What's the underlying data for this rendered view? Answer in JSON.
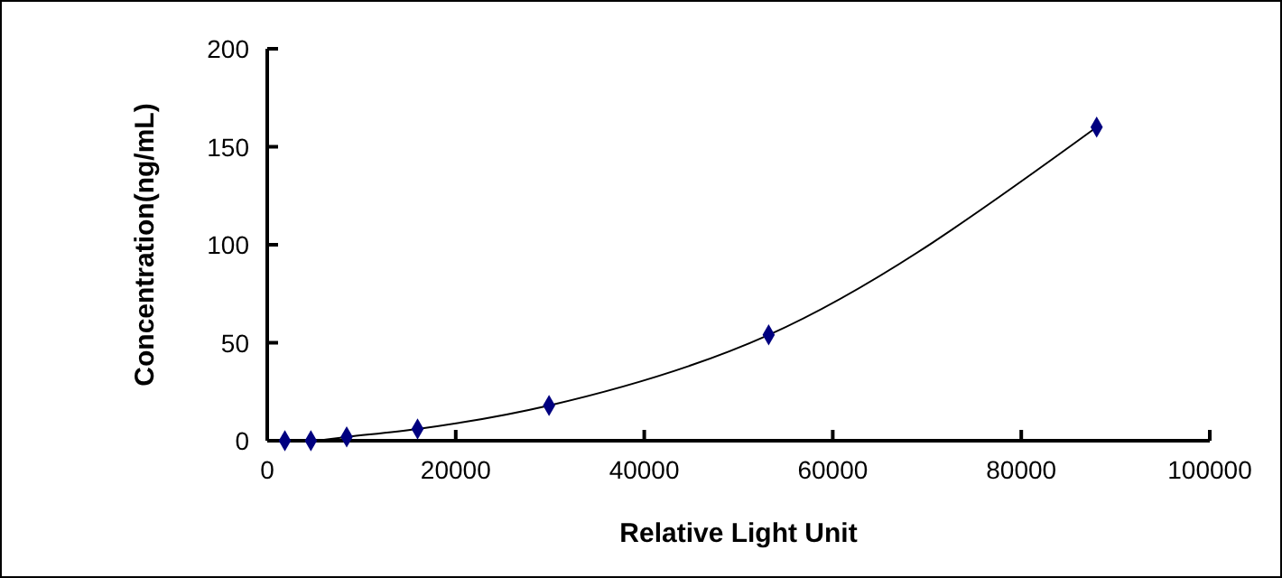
{
  "chart_data": {
    "type": "scatter",
    "xlabel": "Relative Light Unit",
    "ylabel": "Concentration(ng/mL)",
    "xlim": [
      0,
      100000
    ],
    "xticks": [
      0,
      20000,
      40000,
      60000,
      80000,
      100000
    ],
    "ylim": [
      0,
      200
    ],
    "yticks": [
      0,
      50,
      100,
      150,
      200
    ],
    "grid": false,
    "series": [
      {
        "type": "line",
        "color": "#000000",
        "marker": "none",
        "line_style": "solid",
        "x": [
          1870,
          4630,
          8430,
          15950,
          29900,
          53200,
          88000
        ],
        "values": [
          0,
          0,
          2,
          6,
          18,
          54,
          160
        ]
      },
      {
        "color": "#000080",
        "marker": "diamond",
        "x": [
          1870,
          4630,
          8430,
          15950,
          29900,
          53200,
          88000
        ],
        "values": [
          0,
          0,
          2,
          6,
          18,
          54,
          160
        ]
      }
    ]
  }
}
